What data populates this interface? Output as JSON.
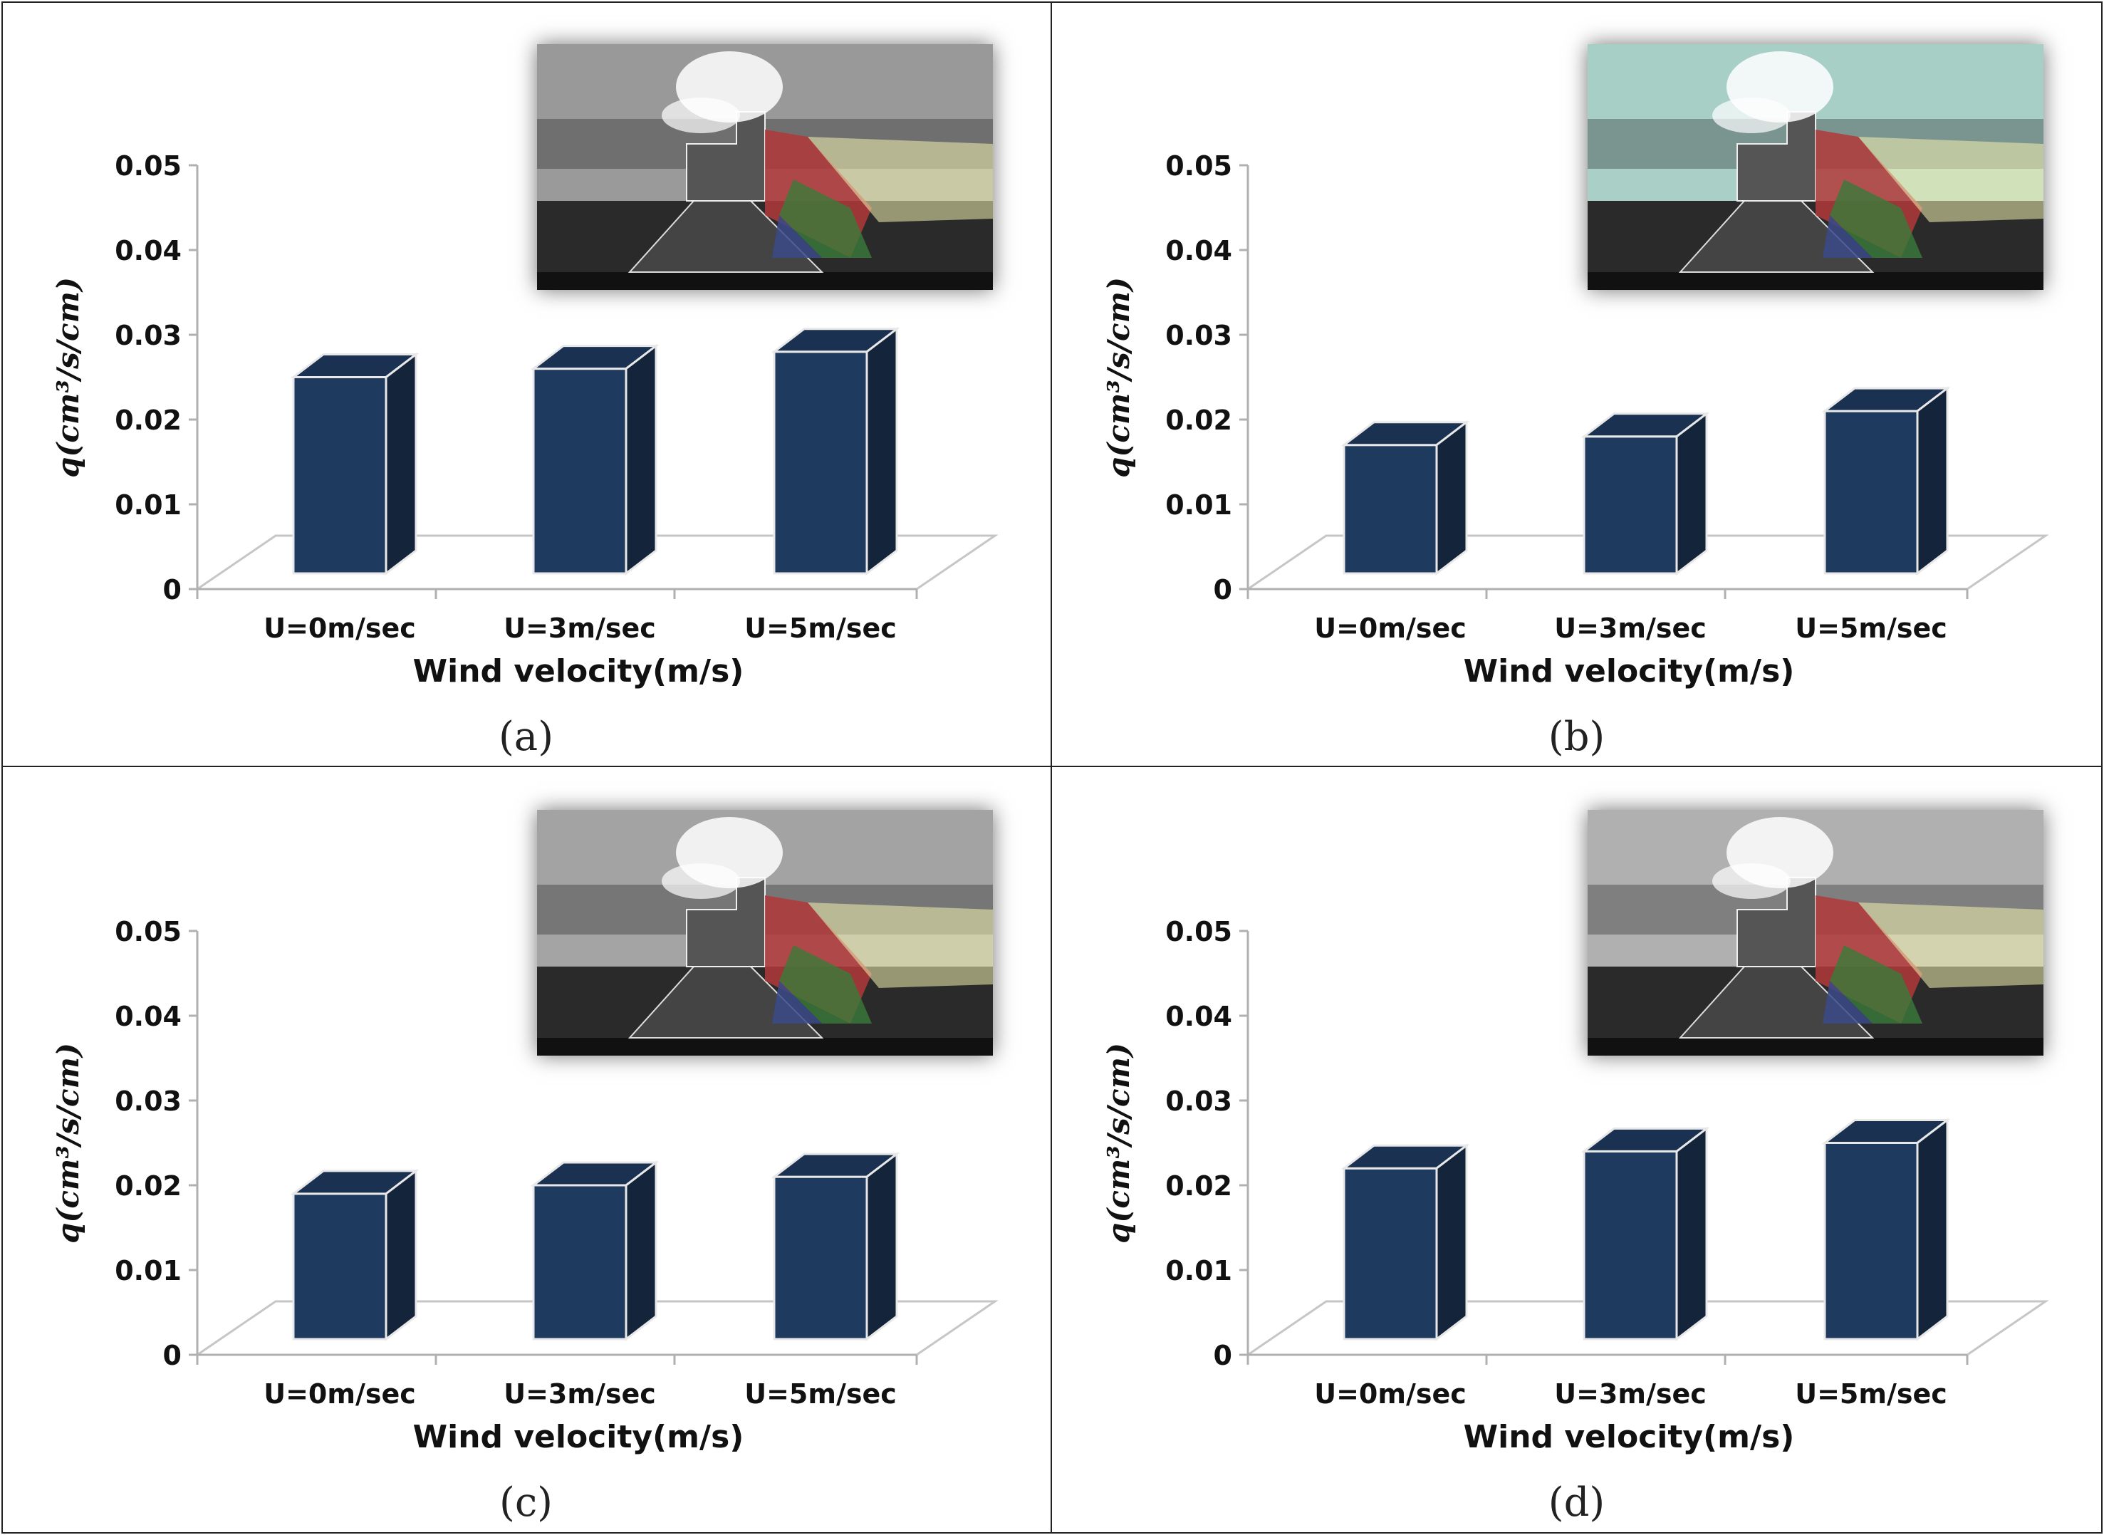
{
  "chart_data": [
    {
      "type": "bar",
      "panel_label": "(a)",
      "categories": [
        "U=0m/sec",
        "U=3m/sec",
        "U=5m/sec"
      ],
      "values": [
        0.025,
        0.026,
        0.028
      ],
      "xlabel": "Wind velocity(m/s)",
      "ylabel": "q(cm³/s/cm)",
      "ylim": [
        0,
        0.05
      ],
      "yticks": [
        "0",
        "0.01",
        "0.02",
        "0.03",
        "0.04",
        "0.05"
      ],
      "bar_color": "#1f3a5f",
      "style": "3d-bar",
      "grid": false,
      "inset_photo_tint": "#9a9a9a"
    },
    {
      "type": "bar",
      "panel_label": "(b)",
      "categories": [
        "U=0m/sec",
        "U=3m/sec",
        "U=5m/sec"
      ],
      "values": [
        0.017,
        0.018,
        0.021
      ],
      "xlabel": "Wind velocity(m/s)",
      "ylabel": "q(cm³/s/cm)",
      "ylim": [
        0,
        0.05
      ],
      "yticks": [
        "0",
        "0.01",
        "0.02",
        "0.03",
        "0.04",
        "0.05"
      ],
      "bar_color": "#1f3a5f",
      "style": "3d-bar",
      "grid": false,
      "inset_photo_tint": "#a9cfc6"
    },
    {
      "type": "bar",
      "panel_label": "(c)",
      "categories": [
        "U=0m/sec",
        "U=3m/sec",
        "U=5m/sec"
      ],
      "values": [
        0.019,
        0.02,
        0.021
      ],
      "xlabel": "Wind velocity(m/s)",
      "ylabel": "q(cm³/s/cm)",
      "ylim": [
        0,
        0.05
      ],
      "yticks": [
        "0",
        "0.01",
        "0.02",
        "0.03",
        "0.04",
        "0.05"
      ],
      "bar_color": "#1f3a5f",
      "style": "3d-bar",
      "grid": false,
      "inset_photo_tint": "#a4a4a4"
    },
    {
      "type": "bar",
      "panel_label": "(d)",
      "categories": [
        "U=0m/sec",
        "U=3m/sec",
        "U=5m/sec"
      ],
      "values": [
        0.022,
        0.024,
        0.025
      ],
      "xlabel": "Wind velocity(m/s)",
      "ylabel": "q(cm³/s/cm)",
      "ylim": [
        0,
        0.05
      ],
      "yticks": [
        "0",
        "0.01",
        "0.02",
        "0.03",
        "0.04",
        "0.05"
      ],
      "bar_color": "#1f3a5f",
      "style": "3d-bar",
      "grid": false,
      "inset_photo_tint": "#b0b0b0"
    }
  ]
}
